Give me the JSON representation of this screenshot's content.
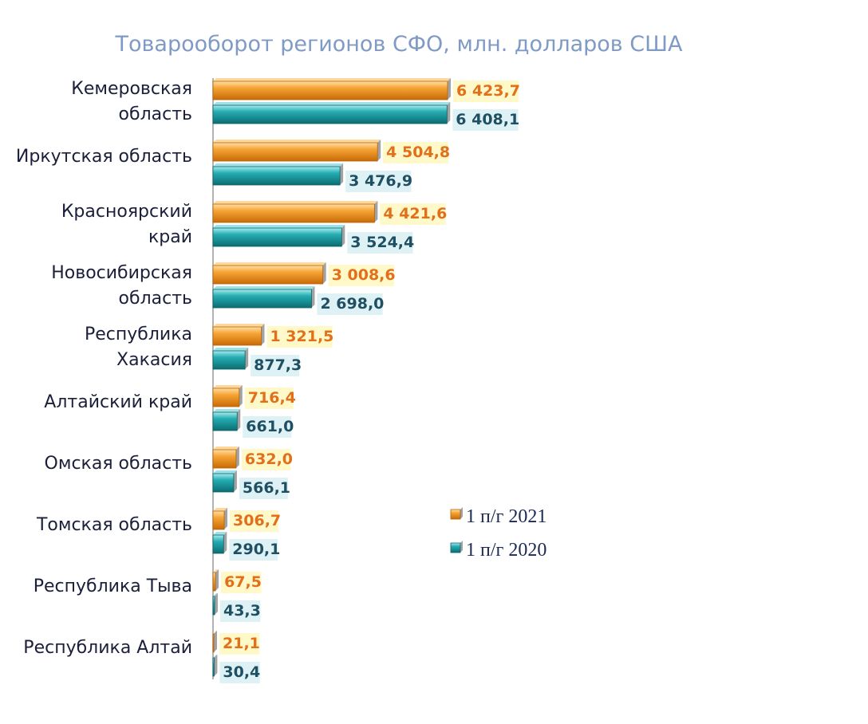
{
  "chart_data": {
    "type": "bar",
    "orientation": "horizontal",
    "title": "Товарооборот регионов СФО, млн. долларов США",
    "categories": [
      [
        "Кемеровская",
        "область"
      ],
      [
        "Иркутская область"
      ],
      [
        "Красноярский",
        "край"
      ],
      [
        "Новосибирская",
        "область"
      ],
      [
        "Республика",
        "Хакасия"
      ],
      [
        "Алтайский край"
      ],
      [
        "Омская область"
      ],
      [
        "Томская область"
      ],
      [
        "Республика Тыва"
      ],
      [
        "Республика Алтай"
      ]
    ],
    "series": [
      {
        "name": "1 п/г 2021",
        "color": "#f39a1e",
        "label_color": "#e2701a",
        "label_bg": "#fff8c8",
        "values": [
          6423.7,
          4504.8,
          4421.6,
          3008.6,
          1321.5,
          716.4,
          632.0,
          306.7,
          67.5,
          21.1
        ],
        "labels": [
          "6 423,7",
          "4 504,8",
          "4 421,6",
          "3 008,6",
          "1 321,5",
          "716,4",
          "632,0",
          "306,7",
          "67,5",
          "21,1"
        ]
      },
      {
        "name": "1 п/г 2020",
        "color": "#1fa3a8",
        "label_color": "#1f4f63",
        "label_bg": "#def2f6",
        "values": [
          6408.1,
          3476.9,
          3524.4,
          2698.0,
          877.3,
          661.0,
          566.1,
          290.1,
          43.3,
          30.4
        ],
        "labels": [
          "6 408,1",
          "3 476,9",
          "3 524,4",
          "2 698,0",
          "877,3",
          "661,0",
          "566,1",
          "290,1",
          "43,3",
          "30,4"
        ]
      }
    ],
    "xlim": [
      0,
      6423.7
    ],
    "grid": false,
    "legend_position": "right-middle"
  }
}
